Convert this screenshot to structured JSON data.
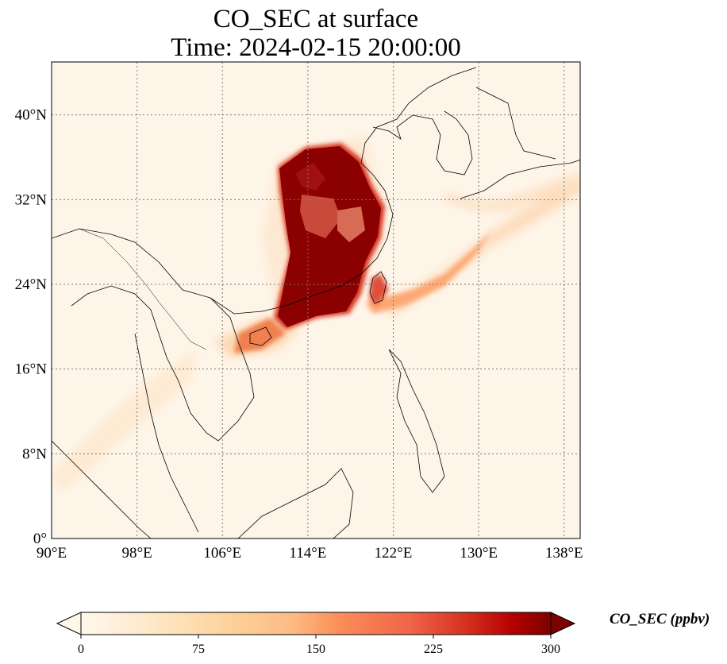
{
  "title": "CO_SEC at surface",
  "subtitle": "Time: 2024-02-15 20:00:00",
  "map": {
    "extent": {
      "lon_min": 90,
      "lon_max": 139.5,
      "lat_min": 0,
      "lat_max": 45
    },
    "gridlines": true,
    "gridline_style": "dotted",
    "x_ticks": [
      {
        "value": 90,
        "label": "90°E"
      },
      {
        "value": 98,
        "label": "98°E"
      },
      {
        "value": 106,
        "label": "106°E"
      },
      {
        "value": 114,
        "label": "114°E"
      },
      {
        "value": 122,
        "label": "122°E"
      },
      {
        "value": 130,
        "label": "130°E"
      },
      {
        "value": 138,
        "label": "138°E"
      }
    ],
    "y_ticks": [
      {
        "value": 0,
        "label": "0°"
      },
      {
        "value": 8,
        "label": "8°N"
      },
      {
        "value": 16,
        "label": "16°N"
      },
      {
        "value": 24,
        "label": "24°N"
      },
      {
        "value": 32,
        "label": "32°N"
      },
      {
        "value": 40,
        "label": "40°N"
      }
    ],
    "colormap": "OrRd",
    "background_color": "#fef5e9",
    "colors": {
      "low": "#fff7ec",
      "mid": "#fdbb84",
      "high": "#ef6548",
      "max": "#7f0000"
    }
  },
  "colorbar": {
    "label": "CO_SEC (ppbv)",
    "min": 0,
    "max": 300,
    "extend": "both",
    "ticks": [
      "0",
      "75",
      "150",
      "225",
      "300"
    ]
  }
}
